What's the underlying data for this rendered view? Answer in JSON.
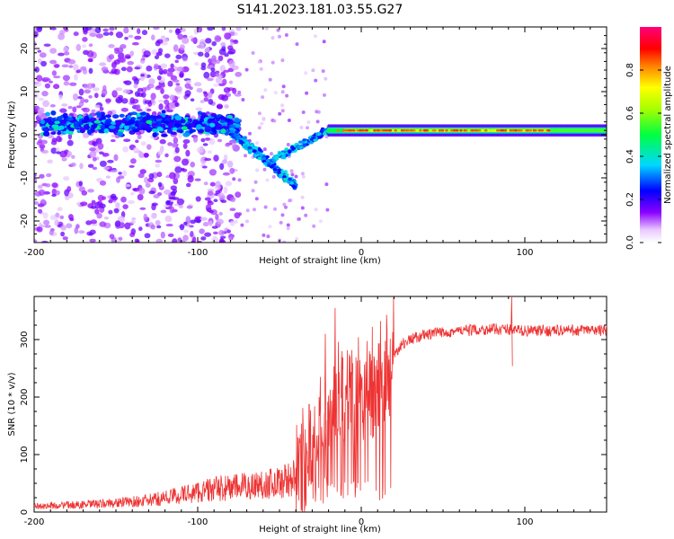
{
  "figure_title": "S141.2023.181.03.55.G27",
  "colors": {
    "snr_line": "#ee3333",
    "axes": "#000000"
  },
  "chart_data": [
    {
      "type": "heatmap",
      "title": "",
      "xlabel": "Height of straight line (km)",
      "ylabel": "Frequency (Hz)",
      "xlim": [
        -200,
        150
      ],
      "ylim": [
        -25,
        25
      ],
      "xticks": [
        -200,
        -100,
        0,
        100
      ],
      "yticks": [
        -20,
        -10,
        0,
        10,
        20
      ],
      "colorbar": {
        "label": "Normalized spectral amplitude",
        "range": [
          0,
          1
        ],
        "ticks": [
          0.0,
          0.2,
          0.4,
          0.6,
          0.8
        ],
        "colormap": "hsv-like (white/violet low → blue → cyan → green → yellow → red → magenta high)"
      },
      "features": [
        {
          "description": "dominant carrier line",
          "x_range": [
            -20,
            150
          ],
          "frequency": 1,
          "amplitude": 0.8
        },
        {
          "description": "scattered diffuse energy",
          "x_range": [
            -200,
            -80
          ],
          "frequency_range": [
            -25,
            25
          ],
          "amplitude": 0.15
        },
        {
          "description": "energetic band near 0-5 Hz",
          "x_range": [
            -190,
            -80
          ],
          "frequency_range": [
            -3,
            8
          ],
          "amplitude": 0.35
        },
        {
          "description": "descending diagonal branch",
          "x_range": [
            -80,
            -40
          ],
          "frequency_range": [
            -13,
            2
          ],
          "amplitude": 0.35
        }
      ]
    },
    {
      "type": "line",
      "title": "",
      "xlabel": "Height of straight line (km)",
      "ylabel": "SNR (10 * v/v)",
      "xlim": [
        -200,
        150
      ],
      "ylim": [
        0,
        375
      ],
      "xticks": [
        -200,
        -100,
        0,
        100
      ],
      "yticks": [
        0,
        100,
        200,
        300
      ],
      "series": [
        {
          "envelope_points": [
            {
              "x": -200,
              "y": 10
            },
            {
              "x": -160,
              "y": 14
            },
            {
              "x": -130,
              "y": 20
            },
            {
              "x": -110,
              "y": 30
            },
            {
              "x": -90,
              "y": 40
            },
            {
              "x": -70,
              "y": 45
            },
            {
              "x": -50,
              "y": 52
            },
            {
              "x": -40,
              "y": 60
            },
            {
              "x": -32,
              "y": 90
            },
            {
              "x": -26,
              "y": 120
            },
            {
              "x": -20,
              "y": 160
            },
            {
              "x": -14,
              "y": 195
            },
            {
              "x": -8,
              "y": 205
            },
            {
              "x": -2,
              "y": 210
            },
            {
              "x": 5,
              "y": 215
            },
            {
              "x": 10,
              "y": 220
            },
            {
              "x": 15,
              "y": 245
            },
            {
              "x": 20,
              "y": 275
            },
            {
              "x": 25,
              "y": 292
            },
            {
              "x": 30,
              "y": 300
            },
            {
              "x": 35,
              "y": 305
            },
            {
              "x": 40,
              "y": 308
            },
            {
              "x": 50,
              "y": 313
            },
            {
              "x": 60,
              "y": 315
            },
            {
              "x": 70,
              "y": 317
            },
            {
              "x": 80,
              "y": 318
            },
            {
              "x": 90,
              "y": 318
            },
            {
              "x": 100,
              "y": 315
            },
            {
              "x": 110,
              "y": 315
            },
            {
              "x": 120,
              "y": 316
            },
            {
              "x": 130,
              "y": 316
            },
            {
              "x": 150,
              "y": 316
            }
          ],
          "peaks": [
            {
              "x": -16,
              "y": 355
            },
            {
              "x": 92,
              "y": 375
            },
            {
              "x": -22,
              "y": 310
            },
            {
              "x": -12,
              "y": 270
            },
            {
              "x": 8,
              "y": 240
            }
          ]
        }
      ]
    }
  ]
}
